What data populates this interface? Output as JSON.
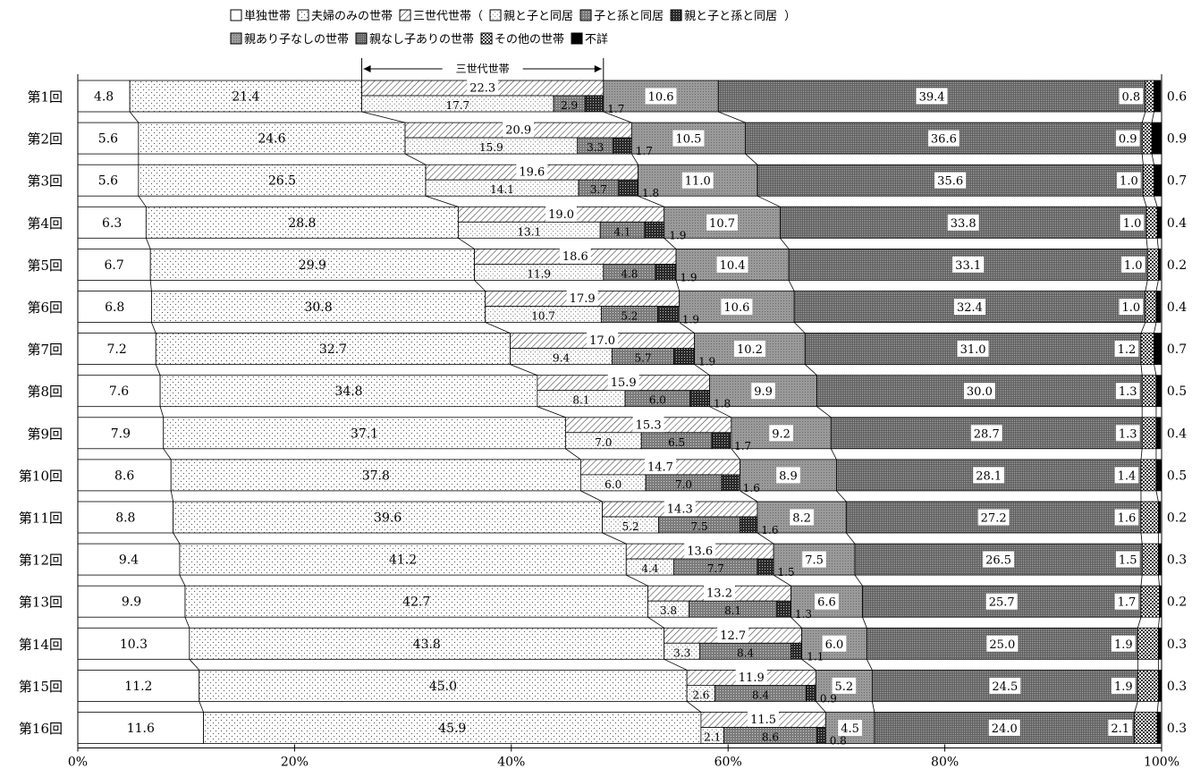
{
  "legend": {
    "row1": [
      {
        "key": "single",
        "label": "単独世帯"
      },
      {
        "key": "couple",
        "label": "夫婦のみの世帯"
      },
      {
        "key": "three",
        "label": "三世代世帯（"
      },
      {
        "key": "pc",
        "label": "親と子と同居"
      },
      {
        "key": "cg",
        "label": "子と孫と同居"
      },
      {
        "key": "pcg",
        "label": "親と子と孫と同居"
      },
      {
        "key": "close",
        "label": "）"
      }
    ],
    "row2": [
      {
        "key": "pnc",
        "label": "親あり子なしの世帯"
      },
      {
        "key": "npc",
        "label": "親なし子ありの世帯"
      },
      {
        "key": "other",
        "label": "その他の世帯"
      },
      {
        "key": "unknown",
        "label": "不詳"
      }
    ]
  },
  "bracket_label": "三世代世帯",
  "chart_data": {
    "type": "bar",
    "orientation": "horizontal",
    "stacked": "100%",
    "categories": [
      "第1回",
      "第2回",
      "第3回",
      "第4回",
      "第5回",
      "第6回",
      "第7回",
      "第8回",
      "第9回",
      "第10回",
      "第11回",
      "第12回",
      "第13回",
      "第14回",
      "第15回",
      "第16回"
    ],
    "series": [
      {
        "name": "単独世帯",
        "values": [
          4.8,
          5.6,
          5.6,
          6.3,
          6.7,
          6.8,
          7.2,
          7.6,
          7.9,
          8.6,
          8.8,
          9.4,
          9.9,
          10.3,
          11.2,
          11.6
        ]
      },
      {
        "name": "夫婦のみの世帯",
        "values": [
          21.4,
          24.6,
          26.5,
          28.8,
          29.9,
          30.8,
          32.7,
          34.8,
          37.1,
          37.8,
          39.6,
          41.2,
          42.7,
          43.8,
          45.0,
          45.9
        ]
      },
      {
        "name": "三世代世帯",
        "values": [
          22.3,
          20.9,
          19.6,
          19.0,
          18.6,
          17.9,
          17.0,
          15.9,
          15.3,
          14.7,
          14.3,
          13.6,
          13.2,
          12.7,
          11.9,
          11.5
        ]
      },
      {
        "name": "親あり子なしの世帯",
        "values": [
          10.6,
          10.5,
          11.0,
          10.7,
          10.4,
          10.6,
          10.2,
          9.9,
          9.2,
          8.9,
          8.2,
          7.5,
          6.6,
          6.0,
          5.2,
          4.5
        ]
      },
      {
        "name": "親なし子ありの世帯",
        "values": [
          39.4,
          36.6,
          35.6,
          33.8,
          33.1,
          32.4,
          31.0,
          30.0,
          28.7,
          28.1,
          27.2,
          26.5,
          25.7,
          25.0,
          24.5,
          24.0
        ]
      },
      {
        "name": "その他の世帯",
        "values": [
          0.8,
          0.9,
          1.0,
          1.0,
          1.0,
          1.0,
          1.2,
          1.3,
          1.3,
          1.4,
          1.6,
          1.5,
          1.7,
          1.9,
          1.9,
          2.1
        ]
      },
      {
        "name": "不詳",
        "values": [
          0.6,
          0.9,
          0.7,
          0.4,
          0.2,
          0.4,
          0.7,
          0.5,
          0.4,
          0.5,
          0.2,
          0.3,
          0.2,
          0.3,
          0.3,
          0.3
        ]
      }
    ],
    "three_gen_breakdown": [
      {
        "name": "親と子と同居",
        "values": [
          17.7,
          15.9,
          14.1,
          13.1,
          11.9,
          10.7,
          9.4,
          8.1,
          7.0,
          6.0,
          5.2,
          4.4,
          3.8,
          3.3,
          2.6,
          2.1
        ]
      },
      {
        "name": "子と孫と同居",
        "values": [
          2.9,
          3.3,
          3.7,
          4.1,
          4.8,
          5.2,
          5.7,
          6.0,
          6.5,
          7.0,
          7.5,
          7.7,
          8.1,
          8.4,
          8.4,
          8.6
        ]
      },
      {
        "name": "親と子と孫と同居",
        "values": [
          1.7,
          1.7,
          1.8,
          1.9,
          1.9,
          1.9,
          1.9,
          1.8,
          1.7,
          1.6,
          1.6,
          1.5,
          1.3,
          1.1,
          0.9,
          0.8
        ]
      }
    ],
    "xlim": [
      0,
      100
    ],
    "xticks": [
      "0%",
      "20%",
      "40%",
      "60%",
      "80%",
      "100%"
    ],
    "legend_position": "top",
    "colors": {
      "single": "#ffffff",
      "unknown": "#000000",
      "border": "#000000"
    }
  }
}
